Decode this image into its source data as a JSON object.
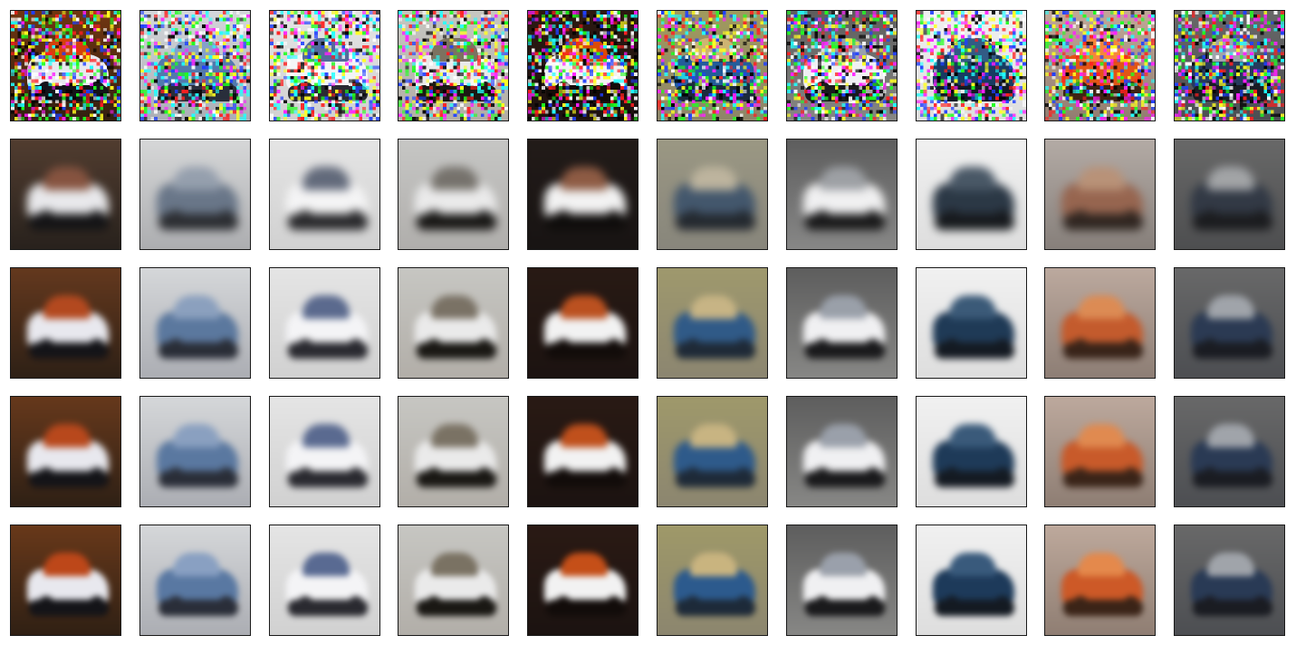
{
  "figure": {
    "rows": [
      {
        "stage": "noisy-input",
        "noisy": true,
        "blur": 0,
        "saturation": 1.3
      },
      {
        "stage": "reconstruction-1",
        "noisy": false,
        "blur": 5,
        "saturation": 0.45
      },
      {
        "stage": "reconstruction-2",
        "noisy": false,
        "blur": 4,
        "saturation": 0.95
      },
      {
        "stage": "reconstruction-3",
        "noisy": false,
        "blur": 4,
        "saturation": 1.0
      },
      {
        "stage": "reconstruction-4",
        "noisy": false,
        "blur": 3.5,
        "saturation": 1.05
      }
    ],
    "columns": [
      {
        "subject": "vehicle-brown-swirl",
        "bg_top": "#6a3a1c",
        "bg_bottom": "#2a1e14",
        "subject_color": "#e8e8ee",
        "dark_color": "#141418",
        "accent": "#b8481c"
      },
      {
        "subject": "blue-vehicle-light-bg",
        "bg_top": "#d8dadc",
        "bg_bottom": "#a8aab0",
        "subject_color": "#5a78a0",
        "dark_color": "#2a2e38",
        "accent": "#8aa0c0"
      },
      {
        "subject": "white-vehicle",
        "bg_top": "#e6e6e6",
        "bg_bottom": "#cfcfcf",
        "subject_color": "#f4f4f6",
        "dark_color": "#2a2a30",
        "accent": "#5a6a90"
      },
      {
        "subject": "dark-car-light-bg",
        "bg_top": "#c8c8c4",
        "bg_bottom": "#b0aca6",
        "subject_color": "#eaeaea",
        "dark_color": "#1a1814",
        "accent": "#7a7264"
      },
      {
        "subject": "red-car-dark-bg",
        "bg_top": "#2a1a14",
        "bg_bottom": "#1a1210",
        "subject_color": "#f2f2f2",
        "dark_color": "#120c0a",
        "accent": "#c0501c"
      },
      {
        "subject": "blue-car-olive-bg",
        "bg_top": "#a09a6a",
        "bg_bottom": "#8a8470",
        "subject_color": "#2e5a8a",
        "dark_color": "#1e2a38",
        "accent": "#c8b482"
      },
      {
        "subject": "white-car-gray-bg",
        "bg_top": "#5a5a5a",
        "bg_bottom": "#8a8a88",
        "subject_color": "#f0f0f2",
        "dark_color": "#1a1a1c",
        "accent": "#9aa0aa"
      },
      {
        "subject": "dark-car-white-bg",
        "bg_top": "#f2f2f2",
        "bg_bottom": "#dcdcdc",
        "subject_color": "#1e3a58",
        "dark_color": "#141a22",
        "accent": "#3a5a7a"
      },
      {
        "subject": "orange-vehicle",
        "bg_top": "#c0aca0",
        "bg_bottom": "#8a7a70",
        "subject_color": "#c85a2a",
        "dark_color": "#3a2418",
        "accent": "#e08a50"
      },
      {
        "subject": "dark-vehicle-gray-bg",
        "bg_top": "#6a6a6a",
        "bg_bottom": "#4a4c50",
        "subject_color": "#2a3a54",
        "dark_color": "#1a1c22",
        "accent": "#a0a4aa"
      }
    ]
  }
}
